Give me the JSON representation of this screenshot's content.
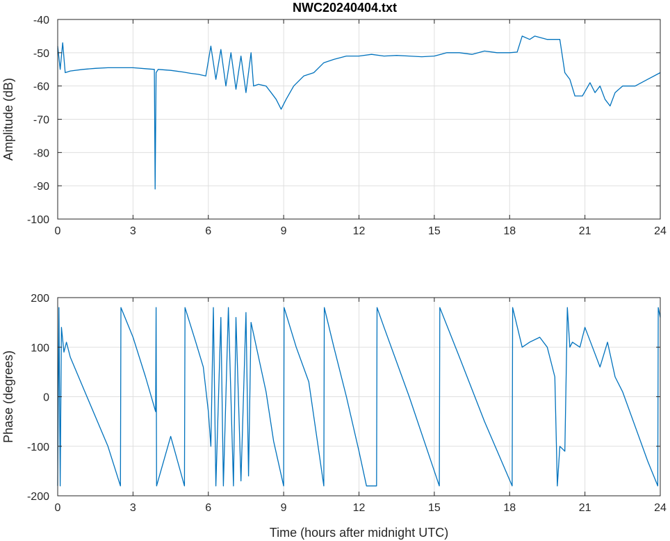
{
  "figure": {
    "title": "NWC20240404.txt",
    "line_color": "#0072bd"
  },
  "chart_data": [
    {
      "type": "line",
      "panel": "amplitude",
      "title": "NWC20240404.txt",
      "xlabel": "",
      "ylabel": "Amplitude (dB)",
      "xlim": [
        0,
        24
      ],
      "ylim": [
        -100,
        -40
      ],
      "xticks": [
        0,
        3,
        6,
        9,
        12,
        15,
        18,
        21,
        24
      ],
      "yticks": [
        -40,
        -50,
        -60,
        -70,
        -80,
        -90,
        -100
      ],
      "grid": true,
      "series": [
        {
          "name": "Amplitude",
          "x": [
            0,
            0.1,
            0.2,
            0.3,
            0.5,
            1,
            1.5,
            2,
            2.5,
            3,
            3.5,
            3.85,
            3.88,
            3.92,
            4.0,
            4.5,
            5,
            5.3,
            5.6,
            5.9,
            6.1,
            6.3,
            6.5,
            6.7,
            6.9,
            7.1,
            7.3,
            7.5,
            7.7,
            7.8,
            8.0,
            8.3,
            8.5,
            8.7,
            8.9,
            9.1,
            9.4,
            9.8,
            10.2,
            10.6,
            11,
            11.5,
            12,
            12.5,
            13,
            13.5,
            14,
            14.5,
            15,
            15.5,
            16,
            16.5,
            17,
            17.5,
            18,
            18.3,
            18.5,
            18.8,
            19,
            19.5,
            20,
            20.2,
            20.4,
            20.6,
            20.9,
            21.2,
            21.4,
            21.6,
            21.8,
            22,
            22.2,
            22.5,
            23,
            23.5,
            24
          ],
          "y": [
            -48,
            -55,
            -47,
            -56,
            -55.5,
            -55,
            -54.7,
            -54.5,
            -54.5,
            -54.5,
            -54.8,
            -55,
            -91,
            -56,
            -55,
            -55.3,
            -55.8,
            -56.2,
            -56.5,
            -57,
            -48,
            -58,
            -49,
            -60,
            -50,
            -61,
            -51,
            -62,
            -50,
            -60,
            -59.5,
            -60,
            -62,
            -64,
            -67,
            -64,
            -60,
            -57,
            -56,
            -53,
            -52,
            -51,
            -51,
            -50.5,
            -51,
            -50.8,
            -51,
            -51.2,
            -51,
            -50,
            -50,
            -50.5,
            -49.5,
            -50,
            -50,
            -49.8,
            -45,
            -46,
            -45,
            -46,
            -46,
            -56,
            -58,
            -63,
            -63,
            -59,
            -62,
            -60,
            -64,
            -66,
            -62,
            -60,
            -60,
            -58,
            -56
          ]
        }
      ]
    },
    {
      "type": "line",
      "panel": "phase",
      "title": "",
      "xlabel": "Time (hours after midnight UTC)",
      "ylabel": "Phase (degrees)",
      "xlim": [
        0,
        24
      ],
      "ylim": [
        -200,
        200
      ],
      "xticks": [
        0,
        3,
        6,
        9,
        12,
        15,
        18,
        21,
        24
      ],
      "yticks": [
        200,
        100,
        0,
        -100,
        -200
      ],
      "grid": true,
      "series": [
        {
          "name": "Phase",
          "x": [
            0,
            0.05,
            0.1,
            0.15,
            0.25,
            0.35,
            0.5,
            1,
            1.5,
            2,
            2.5,
            2.52,
            3,
            3.5,
            3.9,
            3.92,
            3.94,
            4.5,
            5.05,
            5.07,
            5.5,
            5.8,
            6.0,
            6.1,
            6.2,
            6.3,
            6.5,
            6.6,
            6.8,
            7.0,
            7.1,
            7.3,
            7.5,
            7.6,
            7.7,
            8.0,
            8.3,
            8.6,
            9.0,
            9.02,
            9.5,
            10,
            10.6,
            10.62,
            11,
            11.5,
            12,
            12.3,
            12.7,
            12.72,
            13,
            14,
            15.2,
            15.22,
            16,
            17,
            18.1,
            18.12,
            18.5,
            18.8,
            19.2,
            19.5,
            19.8,
            19.9,
            20.0,
            20.2,
            20.3,
            20.4,
            20.5,
            20.8,
            21,
            21.3,
            21.6,
            21.9,
            22.2,
            22.5,
            23,
            23.5,
            23.9,
            23.92,
            24
          ],
          "y": [
            -180,
            180,
            -180,
            140,
            90,
            110,
            80,
            20,
            -40,
            -100,
            -180,
            180,
            120,
            40,
            -30,
            180,
            -180,
            -80,
            -180,
            180,
            110,
            60,
            -30,
            -100,
            180,
            -180,
            160,
            -180,
            180,
            -180,
            160,
            -170,
            170,
            -160,
            150,
            80,
            10,
            -90,
            -180,
            180,
            100,
            30,
            -180,
            180,
            100,
            0,
            -110,
            -180,
            -180,
            180,
            140,
            0,
            -180,
            180,
            80,
            -50,
            -180,
            180,
            100,
            110,
            120,
            100,
            40,
            -180,
            -100,
            -110,
            180,
            100,
            110,
            100,
            140,
            100,
            60,
            110,
            40,
            10,
            -60,
            -130,
            -180,
            180,
            160
          ]
        }
      ]
    }
  ]
}
